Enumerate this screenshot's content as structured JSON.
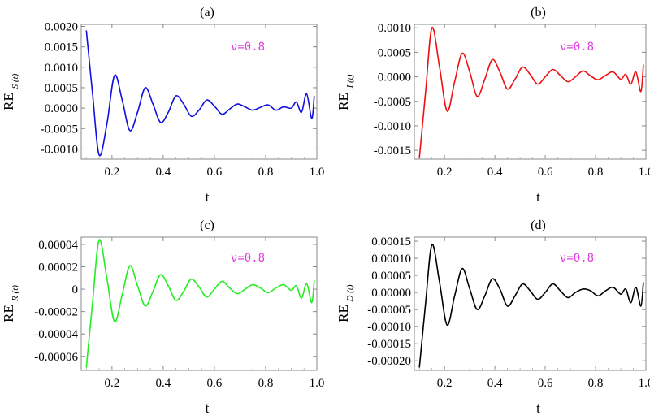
{
  "chart_data": [
    {
      "type": "line",
      "panel_label": "(a)",
      "title": "(a)",
      "ylabel": "RE",
      "ylabel_sub": "S (t)",
      "xlabel": "t",
      "annotation": "ν=0.8",
      "color": "#1010e0",
      "xlim": [
        0.08,
        1.0
      ],
      "ylim": [
        -0.00125,
        0.00205
      ],
      "xticks": [
        0.2,
        0.4,
        0.6,
        0.8,
        1.0
      ],
      "xtick_labels": [
        "0.2",
        "0.4",
        "0.6",
        "0.8",
        "1.0"
      ],
      "yticks": [
        -0.001,
        -0.0005,
        0,
        0.0005,
        0.001,
        0.0015,
        0.002
      ],
      "ytick_labels": [
        "-0.0010",
        "-0.0005",
        "0.0000",
        "0.0005",
        "0.0010",
        "0.0015",
        "0.0020"
      ],
      "x": [
        0.1,
        0.125,
        0.15,
        0.18,
        0.21,
        0.24,
        0.27,
        0.3,
        0.33,
        0.36,
        0.39,
        0.42,
        0.45,
        0.48,
        0.51,
        0.54,
        0.57,
        0.6,
        0.63,
        0.66,
        0.69,
        0.72,
        0.75,
        0.78,
        0.81,
        0.84,
        0.87,
        0.9,
        0.92,
        0.94,
        0.96,
        0.98,
        0.99
      ],
      "y": [
        0.0019,
        0.0003,
        -0.00115,
        -0.0004,
        0.0008,
        0.0002,
        -0.00055,
        -0.0001,
        0.0005,
        0.0001,
        -0.00035,
        -0.0001,
        0.0003,
        0.0001,
        -0.0002,
        -5e-05,
        0.0002,
        5e-05,
        -0.00015,
        -2e-05,
        0.0001,
        3e-05,
        -5e-05,
        2e-05,
        8e-05,
        -5e-05,
        3e-05,
        0.0,
        0.00015,
        -0.0001,
        0.00035,
        -0.00025,
        0.0003
      ]
    },
    {
      "type": "line",
      "panel_label": "(b)",
      "title": "(b)",
      "ylabel": "RE",
      "ylabel_sub": "I (t)",
      "xlabel": "t",
      "annotation": "ν=0.8",
      "color": "#ee1010",
      "xlim": [
        0.08,
        1.0
      ],
      "ylim": [
        -0.00168,
        0.00107
      ],
      "xticks": [
        0.2,
        0.4,
        0.6,
        0.8,
        1.0
      ],
      "xtick_labels": [
        "0.2",
        "0.4",
        "0.6",
        "0.8",
        "1.0"
      ],
      "yticks": [
        -0.0015,
        -0.001,
        -0.0005,
        0,
        0.0005,
        0.001
      ],
      "ytick_labels": [
        "-0.0015",
        "-0.0010",
        "-0.0005",
        "0.0000",
        "0.0005",
        "0.0010"
      ],
      "x": [
        0.1,
        0.125,
        0.15,
        0.18,
        0.21,
        0.24,
        0.27,
        0.3,
        0.33,
        0.36,
        0.39,
        0.42,
        0.45,
        0.48,
        0.51,
        0.54,
        0.57,
        0.6,
        0.63,
        0.66,
        0.69,
        0.72,
        0.75,
        0.78,
        0.81,
        0.84,
        0.87,
        0.9,
        0.92,
        0.94,
        0.96,
        0.98,
        0.99
      ],
      "y": [
        -0.00165,
        -0.0003,
        0.001,
        0.0002,
        -0.0007,
        -0.0001,
        0.00048,
        0.0001,
        -0.0004,
        -5e-05,
        0.00035,
        0.0001,
        -0.00025,
        -5e-05,
        0.0002,
        5e-05,
        -0.00015,
        0.0,
        0.00015,
        3e-05,
        -0.0001,
        0.0,
        0.00012,
        2e-05,
        -6e-05,
        3e-05,
        0.0001,
        -5e-05,
        5e-05,
        -0.00015,
        0.0001,
        -0.0003,
        0.00025
      ]
    },
    {
      "type": "line",
      "panel_label": "(c)",
      "title": "(c)",
      "ylabel": "RE",
      "ylabel_sub": "R (t)",
      "xlabel": "t",
      "annotation": "ν=0.8",
      "color": "#22ee22",
      "xlim": [
        0.08,
        1.0
      ],
      "ylim": [
        -7.25e-05,
        4.65e-05
      ],
      "xticks": [
        0.2,
        0.4,
        0.6,
        0.8,
        1.0
      ],
      "xtick_labels": [
        "0.2",
        "0.4",
        "0.6",
        "0.8",
        "1.0"
      ],
      "yticks": [
        -6e-05,
        -4e-05,
        -2e-05,
        0,
        2e-05,
        4e-05
      ],
      "ytick_labels": [
        "-0.00006",
        "-0.00004",
        "-0.00002",
        "0",
        "0.00002",
        "0.00004"
      ],
      "x": [
        0.1,
        0.125,
        0.15,
        0.18,
        0.21,
        0.24,
        0.27,
        0.3,
        0.33,
        0.36,
        0.39,
        0.42,
        0.45,
        0.48,
        0.51,
        0.54,
        0.57,
        0.6,
        0.63,
        0.66,
        0.69,
        0.72,
        0.75,
        0.78,
        0.81,
        0.84,
        0.87,
        0.9,
        0.92,
        0.94,
        0.96,
        0.98,
        0.99
      ],
      "y": [
        -7e-05,
        -1e-05,
        4.4e-05,
        1e-05,
        -2.9e-05,
        -5e-06,
        2.1e-05,
        3e-06,
        -1.5e-05,
        -2e-06,
        1.3e-05,
        3e-06,
        -1e-05,
        -2e-06,
        9e-06,
        2e-06,
        -7e-06,
        0.0,
        7e-06,
        1e-06,
        -4e-06,
        0.0,
        4e-06,
        1e-06,
        -3e-06,
        1e-06,
        4e-06,
        -1e-06,
        3e-06,
        -8e-06,
        5e-06,
        -1.2e-05,
        8e-06
      ]
    },
    {
      "type": "line",
      "panel_label": "(d)",
      "title": "(d)",
      "ylabel": "RE",
      "ylabel_sub": "D (t)",
      "xlabel": "t",
      "annotation": "ν=0.8",
      "color": "#000000",
      "xlim": [
        0.08,
        1.0
      ],
      "ylim": [
        -0.000228,
        0.000162
      ],
      "xticks": [
        0.2,
        0.4,
        0.6,
        0.8,
        1.0
      ],
      "xtick_labels": [
        "0.2",
        "0.4",
        "0.6",
        "0.8",
        "1.0"
      ],
      "yticks": [
        -0.0002,
        -0.00015,
        -0.0001,
        -5e-05,
        0,
        5e-05,
        0.0001,
        0.00015
      ],
      "ytick_labels": [
        "-0.00020",
        "-0.00015",
        "-0.00010",
        "-0.00005",
        "0.00000",
        "0.00005",
        "0.00010",
        "0.00015"
      ],
      "x": [
        0.1,
        0.125,
        0.15,
        0.18,
        0.21,
        0.24,
        0.27,
        0.3,
        0.33,
        0.36,
        0.39,
        0.42,
        0.45,
        0.48,
        0.51,
        0.54,
        0.57,
        0.6,
        0.63,
        0.66,
        0.69,
        0.72,
        0.75,
        0.78,
        0.81,
        0.84,
        0.87,
        0.9,
        0.92,
        0.94,
        0.96,
        0.98,
        0.99
      ],
      "y": [
        -0.00022,
        -3e-05,
        0.00014,
        3e-05,
        -9.5e-05,
        -1e-05,
        7e-05,
        1e-05,
        -5e-05,
        -1e-05,
        4e-05,
        1e-05,
        -4e-05,
        -1e-05,
        2.5e-05,
        5e-06,
        -2e-05,
        0.0,
        2.5e-05,
        5e-06,
        -1.5e-05,
        0.0,
        1e-05,
        5e-06,
        -1e-05,
        5e-06,
        1.5e-05,
        -5e-06,
        1e-05,
        -3e-05,
        1.5e-05,
        -4e-05,
        3e-05
      ]
    }
  ]
}
